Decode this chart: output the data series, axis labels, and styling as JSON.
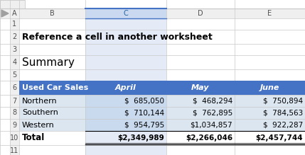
{
  "title": "Reference a cell in another worksheet",
  "subtitle": "Summary",
  "header_bg": "#4472C4",
  "header_text_color": "#FFFFFF",
  "row_alt_bg": "#DCE6F1",
  "row_normal_bg": "#FFFFFF",
  "grid_line_color": "#C0C0C0",
  "col_header": "Used Car Sales",
  "months": [
    "April",
    "May",
    "June"
  ],
  "rows": [
    {
      "label": "Northern",
      "april": "$  685,050",
      "may": "$  468,294",
      "june": "$  750,894"
    },
    {
      "label": "Southern",
      "april": "$  710,144",
      "may": "$  762,895",
      "june": "$  784,563"
    },
    {
      "label": "Western",
      "april": "$  954,795",
      "may": "$1,034,857",
      "june": "$  922,287"
    },
    {
      "label": "Total",
      "april": "$2,349,989",
      "may": "$2,266,046",
      "june": "$2,457,744"
    }
  ],
  "spreadsheet_bg": "#FFFFFF",
  "cell_border_color": "#C8C8C8",
  "col_header_bg": "#EFEFEF",
  "col_header_text": "#505050",
  "row_number_color": "#505050",
  "active_col_bg": "#E4EBF7",
  "active_col_header_bg": "#CAD9F0",
  "active_col_header_border": "#4472C4",
  "formula_bar_bg": "#FFFFFF",
  "formula_bar_border": "#C0C0C0"
}
